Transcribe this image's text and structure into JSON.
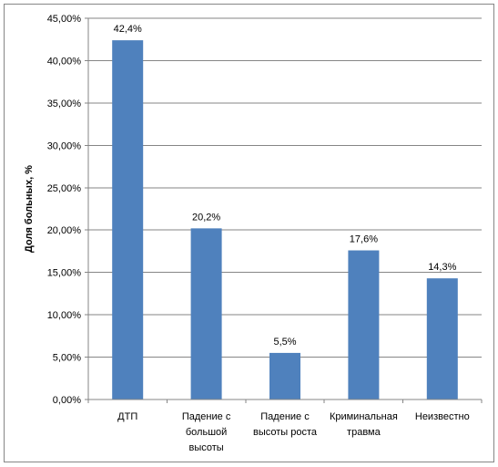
{
  "chart_data": {
    "type": "bar",
    "title": "",
    "xlabel": "",
    "ylabel": "Доля больных, %",
    "ylim": [
      0,
      45
    ],
    "y_ticks": [
      "0,00%",
      "5,00%",
      "10,00%",
      "15,00%",
      "20,00%",
      "25,00%",
      "30,00%",
      "35,00%",
      "40,00%",
      "45,00%"
    ],
    "grid": true,
    "legend": "none",
    "bar_color": "#4F81BD",
    "categories": [
      [
        "ДТП"
      ],
      [
        "Падение с",
        "большой",
        "высоты"
      ],
      [
        "Падение с",
        "высоты роста"
      ],
      [
        "Криминальная",
        "травма"
      ],
      [
        "Неизвестно"
      ]
    ],
    "values": [
      42.4,
      20.2,
      5.5,
      17.6,
      14.3
    ],
    "data_labels": [
      "42,4%",
      "20,2%",
      "5,5%",
      "17,6%",
      "14,3%"
    ]
  }
}
